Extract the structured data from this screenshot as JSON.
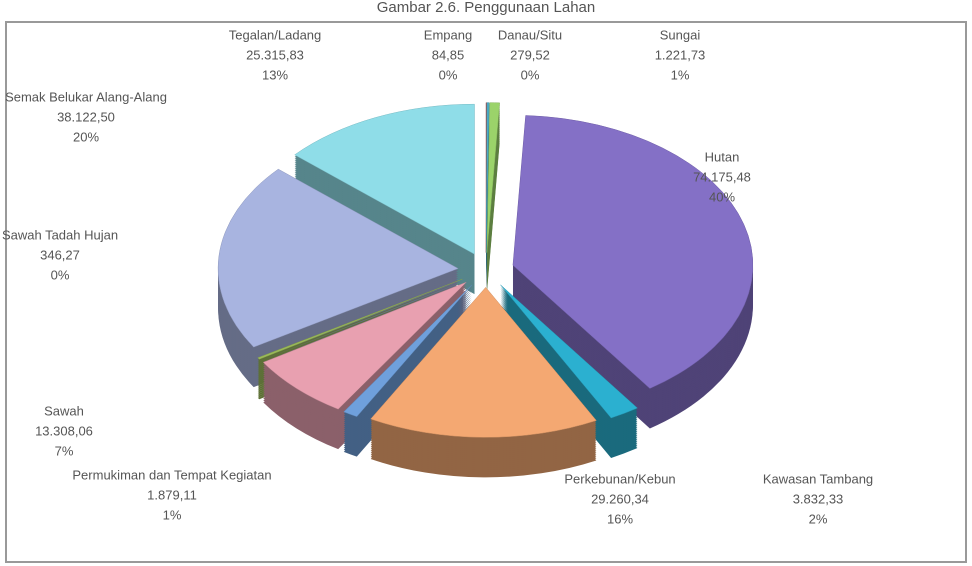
{
  "chart_data": {
    "type": "pie",
    "title": "Gambar 2.6. Penggunaan Lahan",
    "categories": [
      "Empang",
      "Danau/Situ",
      "Sungai",
      "Hutan",
      "Kawasan Tambang",
      "Perkebunan/Kebun",
      "Permukiman dan Tempat Kegiatan",
      "Sawah",
      "Sawah Tadah Hujan",
      "Semak Belukar Alang-Alang",
      "Tegalan/Ladang"
    ],
    "values": [
      84.85,
      279.52,
      1221.73,
      74175.48,
      3832.33,
      29260.34,
      1879.11,
      13308.06,
      346.27,
      38122.5,
      25315.83
    ],
    "value_labels": [
      "84,85",
      "279,52",
      "1.221,73",
      "74.175,48",
      "3.832,33",
      "29.260,34",
      "1.879,11",
      "13.308,06",
      "346,27",
      "38.122,50",
      "25.315,83"
    ],
    "percent_labels": [
      "0%",
      "0%",
      "1%",
      "40%",
      "2%",
      "16%",
      "1%",
      "7%",
      "0%",
      "20%",
      "13%"
    ],
    "colors": [
      "#c0504d",
      "#4bacc6",
      "#9bd36a",
      "#8470c6",
      "#2bb0d0",
      "#f4a872",
      "#6fa0dc",
      "#e8a0b0",
      "#9bbb59",
      "#a8b4e0",
      "#8fdde8"
    ]
  }
}
